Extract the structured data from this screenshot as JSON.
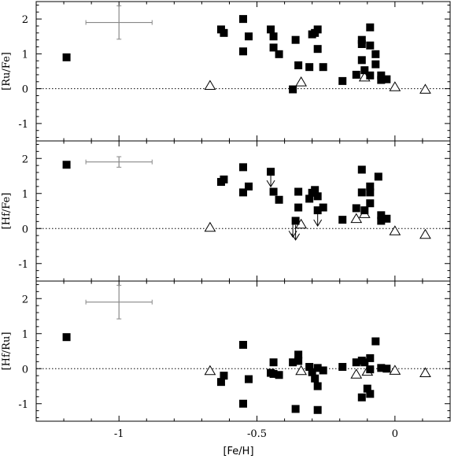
{
  "chart_data": {
    "type": "scatter",
    "xlabel": "[Fe/H]",
    "xlim": [
      -1.3,
      0.2
    ],
    "x_ticks": [
      {
        "v": -1,
        "label": "-1"
      },
      {
        "v": -0.5,
        "label": "-0.5"
      },
      {
        "v": 0,
        "label": "0"
      }
    ],
    "panels": [
      {
        "ylabel": "[Ru/Fe]",
        "ylim": [
          -1.5,
          2.5
        ],
        "y_ticks": [
          {
            "v": 2,
            "label": "2"
          },
          {
            "v": 1,
            "label": "1"
          },
          {
            "v": 0,
            "label": "0"
          },
          {
            "v": -1,
            "label": "-1"
          }
        ],
        "reference_line_y": 0,
        "error_bar": {
          "x": -1.0,
          "y": 1.9,
          "xerr": 0.12,
          "yerr_up": 0.48,
          "yerr_down": 0.48
        },
        "filled_squares": [
          [
            -1.19,
            0.9
          ],
          [
            -0.63,
            1.7
          ],
          [
            -0.62,
            1.6
          ],
          [
            -0.55,
            2.0
          ],
          [
            -0.55,
            1.07
          ],
          [
            -0.53,
            1.5
          ],
          [
            -0.45,
            1.7
          ],
          [
            -0.44,
            1.5
          ],
          [
            -0.44,
            1.18
          ],
          [
            -0.42,
            0.99
          ],
          [
            -0.37,
            -0.02
          ],
          [
            -0.36,
            1.4
          ],
          [
            -0.35,
            0.67
          ],
          [
            -0.31,
            0.62
          ],
          [
            -0.3,
            1.56
          ],
          [
            -0.29,
            1.6
          ],
          [
            -0.28,
            1.7
          ],
          [
            -0.28,
            1.14
          ],
          [
            -0.26,
            0.62
          ],
          [
            -0.19,
            0.22
          ],
          [
            -0.14,
            0.4
          ],
          [
            -0.12,
            1.4
          ],
          [
            -0.12,
            1.28
          ],
          [
            -0.12,
            0.82
          ],
          [
            -0.11,
            0.53
          ],
          [
            -0.09,
            1.76
          ],
          [
            -0.09,
            1.24
          ],
          [
            -0.09,
            0.38
          ],
          [
            -0.07,
            0.99
          ],
          [
            -0.07,
            0.7
          ],
          [
            -0.05,
            0.38
          ],
          [
            -0.05,
            0.25
          ],
          [
            -0.03,
            0.27
          ]
        ],
        "open_triangles": [
          [
            -0.67,
            0.09
          ],
          [
            -0.34,
            0.19
          ],
          [
            -0.11,
            0.33
          ],
          [
            0.0,
            0.05
          ],
          [
            0.11,
            -0.02
          ]
        ],
        "upper_limits": []
      },
      {
        "ylabel": "[Hf/Fe]",
        "ylim": [
          -1.5,
          2.5
        ],
        "y_ticks": [
          {
            "v": 2,
            "label": "2"
          },
          {
            "v": 1,
            "label": "1"
          },
          {
            "v": 0,
            "label": "0"
          },
          {
            "v": -1,
            "label": "-1"
          }
        ],
        "reference_line_y": 0,
        "error_bar": {
          "x": -1.0,
          "y": 1.9,
          "xerr": 0.12,
          "yerr_up": 0.15,
          "yerr_down": 0.15
        },
        "filled_squares": [
          [
            -1.19,
            1.82
          ],
          [
            -0.63,
            1.33
          ],
          [
            -0.62,
            1.4
          ],
          [
            -0.55,
            1.75
          ],
          [
            -0.55,
            1.03
          ],
          [
            -0.53,
            1.2
          ],
          [
            -0.45,
            1.62
          ],
          [
            -0.44,
            1.05
          ],
          [
            -0.42,
            0.82
          ],
          [
            -0.36,
            0.22
          ],
          [
            -0.35,
            1.05
          ],
          [
            -0.35,
            0.6
          ],
          [
            -0.31,
            0.85
          ],
          [
            -0.3,
            1.02
          ],
          [
            -0.29,
            1.1
          ],
          [
            -0.28,
            0.92
          ],
          [
            -0.28,
            0.52
          ],
          [
            -0.26,
            0.6
          ],
          [
            -0.19,
            0.25
          ],
          [
            -0.14,
            0.58
          ],
          [
            -0.12,
            1.68
          ],
          [
            -0.12,
            1.03
          ],
          [
            -0.11,
            0.52
          ],
          [
            -0.09,
            1.2
          ],
          [
            -0.09,
            1.03
          ],
          [
            -0.09,
            0.72
          ],
          [
            -0.06,
            1.48
          ],
          [
            -0.05,
            0.38
          ],
          [
            -0.05,
            0.22
          ],
          [
            -0.03,
            0.28
          ]
        ],
        "open_triangles": [
          [
            -0.67,
            0.03
          ],
          [
            -0.34,
            0.12
          ],
          [
            -0.14,
            0.28
          ],
          [
            -0.11,
            0.42
          ],
          [
            0.0,
            -0.07
          ],
          [
            0.11,
            -0.17
          ]
        ],
        "upper_limits": [
          [
            -0.45,
            1.62
          ],
          [
            -0.37,
            0.18
          ],
          [
            -0.36,
            0.1
          ],
          [
            -0.28,
            0.5
          ]
        ]
      },
      {
        "ylabel": "[Hf/Ru]",
        "ylim": [
          -1.5,
          2.5
        ],
        "y_ticks": [
          {
            "v": 2,
            "label": "2"
          },
          {
            "v": 1,
            "label": "1"
          },
          {
            "v": 0,
            "label": "0"
          },
          {
            "v": -1,
            "label": "-1"
          }
        ],
        "reference_line_y": 0,
        "error_bar": {
          "x": -1.0,
          "y": 1.9,
          "xerr": 0.12,
          "yerr_up": 0.48,
          "yerr_down": 0.48
        },
        "filled_squares": [
          [
            -1.19,
            0.9
          ],
          [
            -0.63,
            -0.38
          ],
          [
            -0.62,
            -0.2
          ],
          [
            -0.55,
            0.68
          ],
          [
            -0.55,
            -1.0
          ],
          [
            -0.53,
            -0.3
          ],
          [
            -0.45,
            -0.12
          ],
          [
            -0.44,
            0.18
          ],
          [
            -0.44,
            -0.15
          ],
          [
            -0.42,
            -0.18
          ],
          [
            -0.37,
            0.18
          ],
          [
            -0.36,
            -1.15
          ],
          [
            -0.35,
            0.4
          ],
          [
            -0.35,
            0.22
          ],
          [
            -0.31,
            0.05
          ],
          [
            -0.3,
            -0.1
          ],
          [
            -0.29,
            -0.28
          ],
          [
            -0.28,
            0.02
          ],
          [
            -0.28,
            -0.5
          ],
          [
            -0.28,
            -1.18
          ],
          [
            -0.26,
            -0.05
          ],
          [
            -0.19,
            0.05
          ],
          [
            -0.14,
            0.18
          ],
          [
            -0.12,
            0.23
          ],
          [
            -0.12,
            -0.82
          ],
          [
            -0.11,
            0.18
          ],
          [
            -0.1,
            -0.57
          ],
          [
            -0.09,
            0.3
          ],
          [
            -0.09,
            -0.02
          ],
          [
            -0.09,
            -0.72
          ],
          [
            -0.07,
            0.78
          ],
          [
            -0.05,
            0.02
          ],
          [
            -0.03,
            0.0
          ]
        ],
        "open_triangles": [
          [
            -0.67,
            -0.06
          ],
          [
            -0.34,
            -0.06
          ],
          [
            -0.14,
            -0.16
          ],
          [
            -0.1,
            -0.08
          ],
          [
            0.0,
            -0.05
          ],
          [
            0.11,
            -0.12
          ]
        ],
        "upper_limits": []
      }
    ]
  }
}
